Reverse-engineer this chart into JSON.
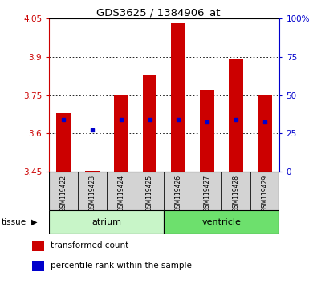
{
  "title": "GDS3625 / 1384906_at",
  "samples": [
    "GSM119422",
    "GSM119423",
    "GSM119424",
    "GSM119425",
    "GSM119426",
    "GSM119427",
    "GSM119428",
    "GSM119429"
  ],
  "transformed_counts": [
    3.68,
    3.455,
    3.75,
    3.83,
    4.03,
    3.77,
    3.89,
    3.75
  ],
  "baseline": 3.45,
  "percentile_values": [
    3.655,
    3.615,
    3.655,
    3.655,
    3.655,
    3.645,
    3.655,
    3.645
  ],
  "ylim_left": [
    3.45,
    4.05
  ],
  "ylim_right": [
    0,
    100
  ],
  "yticks_left": [
    3.45,
    3.6,
    3.75,
    3.9,
    4.05
  ],
  "yticks_right": [
    0,
    25,
    50,
    75,
    100
  ],
  "ytick_labels_left": [
    "3.45",
    "3.6",
    "3.75",
    "3.9",
    "4.05"
  ],
  "ytick_labels_right": [
    "0",
    "25",
    "50",
    "75",
    "100%"
  ],
  "groups": [
    {
      "name": "atrium",
      "samples": [
        0,
        1,
        2,
        3
      ],
      "color": "#c8f5c8"
    },
    {
      "name": "ventricle",
      "samples": [
        4,
        5,
        6,
        7
      ],
      "color": "#6de06d"
    }
  ],
  "bar_color": "#cc0000",
  "blue_marker_color": "#0000cc",
  "label_bg_color": "#d3d3d3",
  "tissue_label": "tissue",
  "legend_items": [
    {
      "label": "transformed count",
      "color": "#cc0000"
    },
    {
      "label": "percentile rank within the sample",
      "color": "#0000cc"
    }
  ],
  "left_axis_color": "#cc0000",
  "right_axis_color": "#0000cc",
  "bar_width": 0.5
}
